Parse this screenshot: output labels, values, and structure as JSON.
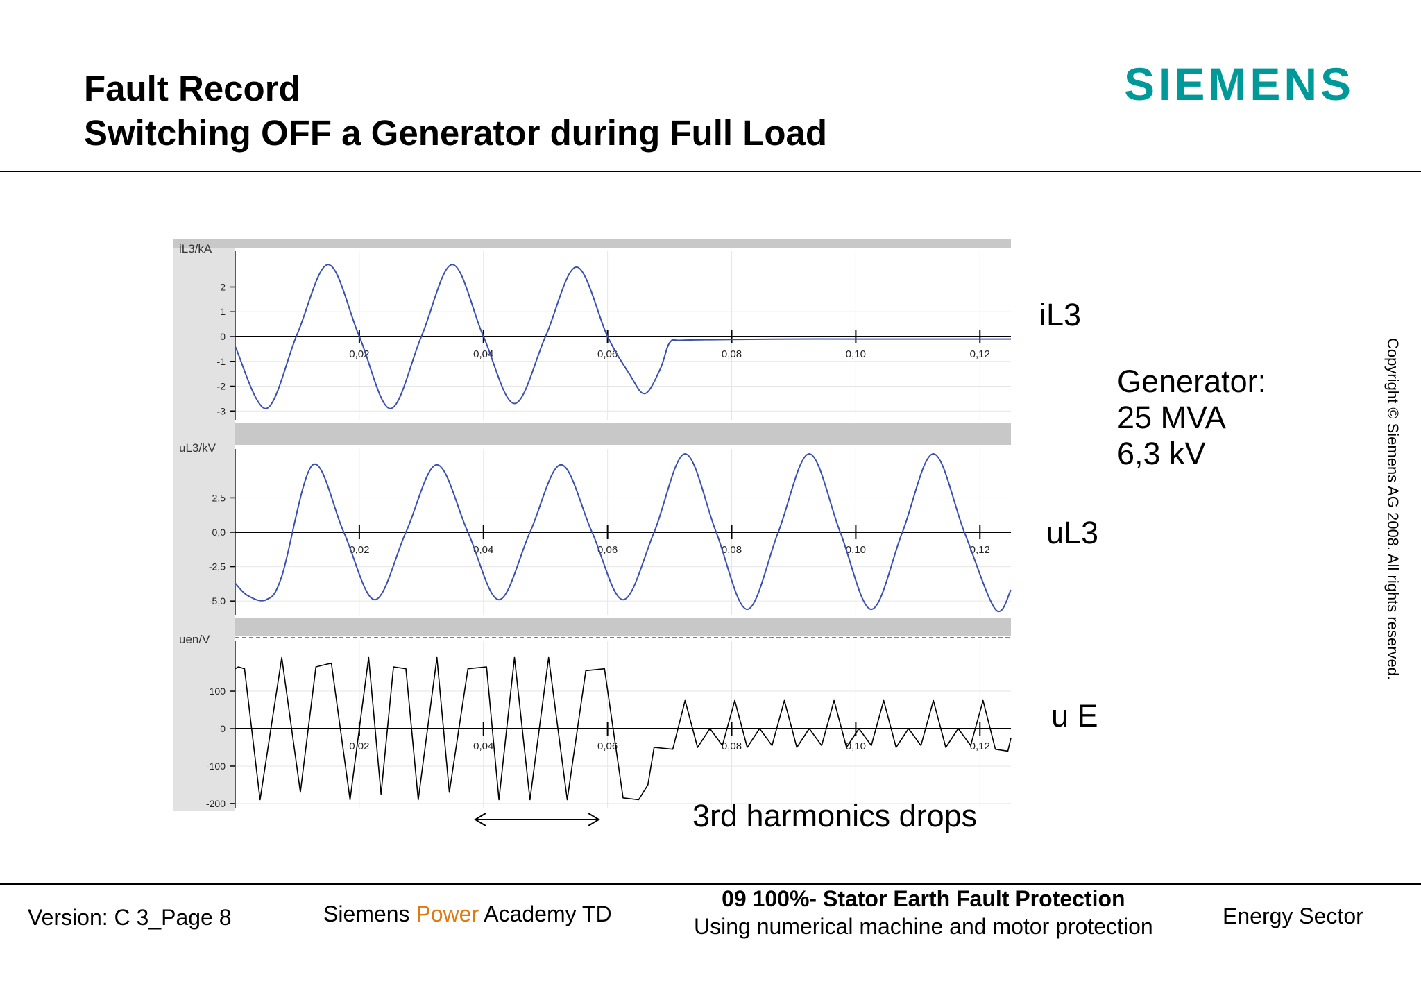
{
  "header": {
    "title_line1": "Fault Record",
    "title_line2": "Switching OFF a Generator during Full Load",
    "logo": "SIEMENS",
    "logo_color": "#009999"
  },
  "labels": {
    "il3": "iL3",
    "ul3": "uL3",
    "ue": "u E",
    "generator_line1": "Generator:",
    "generator_line2": "25 MVA",
    "generator_line3": "6,3 kV",
    "annotation": "3rd harmonics drops",
    "copyright": "Copyright © Siemens AG 2008. All rights reserved."
  },
  "footer": {
    "version": "Version: C 3_Page 8",
    "academy_pre": "Siemens ",
    "academy_power": "Power",
    "academy_post": " Academy TD",
    "power_color": "#e07a10",
    "topic_line1": "09  100%- Stator Earth Fault Protection",
    "topic_line2": "Using numerical machine and motor protection",
    "sector": "Energy Sector"
  },
  "chart_data": [
    {
      "type": "line",
      "title": "",
      "ylabel": "iL3/kA",
      "xlim": [
        0,
        0.125
      ],
      "ylim": [
        -3.3,
        3.3
      ],
      "yticks": [
        2,
        1,
        0,
        -1,
        -2,
        -3
      ],
      "ytick_labels": [
        "2",
        "1",
        "0",
        "-1",
        "-2",
        "-3"
      ],
      "xticks": [
        0.02,
        0.04,
        0.06,
        0.08,
        0.1,
        0.12
      ],
      "xtick_labels": [
        "0,02",
        "0,04",
        "0,06",
        "0,08",
        "0,10",
        "0,12"
      ],
      "series": [
        {
          "color": "#3a50b0",
          "x": [
            0,
            0.005,
            0.01,
            0.015,
            0.02,
            0.025,
            0.03,
            0.035,
            0.04,
            0.045,
            0.05,
            0.055,
            0.06,
            0.0635,
            0.066,
            0.0685,
            0.07,
            0.072,
            0.08,
            0.09,
            0.1,
            0.11,
            0.12,
            0.125
          ],
          "y": [
            -0.4,
            -2.9,
            0.1,
            2.9,
            0,
            -2.9,
            0,
            2.9,
            0,
            -2.7,
            0,
            2.8,
            0,
            -1.5,
            -2.3,
            -1.3,
            -0.25,
            -0.15,
            -0.12,
            -0.1,
            -0.1,
            -0.1,
            -0.1,
            -0.1
          ]
        }
      ]
    },
    {
      "type": "line",
      "title": "",
      "ylabel": "uL3/kV",
      "xlim": [
        0,
        0.125
      ],
      "ylim": [
        -6.0,
        6.0
      ],
      "yticks": [
        2.5,
        0,
        -2.5,
        -5.0
      ],
      "ytick_labels": [
        "2,5",
        "0,0",
        "-2,5",
        "-5,0"
      ],
      "xticks": [
        0.02,
        0.04,
        0.06,
        0.08,
        0.1,
        0.12
      ],
      "xtick_labels": [
        "0,02",
        "0,04",
        "0,06",
        "0,08",
        "0,10",
        "0,12"
      ],
      "series": [
        {
          "color": "#3a50b0",
          "x": [
            0,
            0.002,
            0.005,
            0.0075,
            0.0125,
            0.0175,
            0.0225,
            0.0275,
            0.0325,
            0.0375,
            0.0425,
            0.0475,
            0.0525,
            0.0575,
            0.0625,
            0.0675,
            0.0725,
            0.0775,
            0.0825,
            0.0875,
            0.0925,
            0.0975,
            0.1025,
            0.1075,
            0.1125,
            0.1175,
            0.1225,
            0.125
          ],
          "y": [
            -3.7,
            -4.6,
            -4.9,
            -3.2,
            4.9,
            0,
            -4.9,
            0,
            4.9,
            0,
            -4.9,
            0,
            4.9,
            0,
            -4.9,
            0,
            5.7,
            0,
            -5.6,
            0,
            5.7,
            0,
            -5.6,
            0,
            5.7,
            0,
            -5.6,
            -4.2
          ]
        }
      ]
    },
    {
      "type": "line",
      "title": "",
      "ylabel": "uen/V",
      "xlim": [
        0,
        0.125
      ],
      "ylim": [
        -215,
        215
      ],
      "yticks": [
        100,
        0,
        -100,
        -200
      ],
      "ytick_labels": [
        "100",
        "0",
        "-100",
        "-200"
      ],
      "xticks": [
        0.02,
        0.04,
        0.06,
        0.08,
        0.1,
        0.12
      ],
      "xtick_labels": [
        "0,02",
        "0,04",
        "0,06",
        "0,08",
        "0,10",
        "0,12"
      ],
      "series": [
        {
          "color": "#000000",
          "x": [
            0,
            0.0005,
            0.0015,
            0.004,
            0.0075,
            0.0105,
            0.013,
            0.0155,
            0.0185,
            0.0215,
            0.0235,
            0.0255,
            0.0275,
            0.0295,
            0.0325,
            0.0345,
            0.0375,
            0.0405,
            0.0425,
            0.045,
            0.0475,
            0.0505,
            0.0535,
            0.0565,
            0.0595,
            0.0625,
            0.065,
            0.0665,
            0.0675,
            0.0705,
            0.0725,
            0.0745,
            0.0765,
            0.0785,
            0.0805,
            0.0825,
            0.0845,
            0.0865,
            0.0885,
            0.0905,
            0.0925,
            0.0945,
            0.0965,
            0.0985,
            0.1005,
            0.1025,
            0.1045,
            0.1065,
            0.1085,
            0.1105,
            0.1125,
            0.1145,
            0.1165,
            0.1185,
            0.1205,
            0.1225,
            0.1245,
            0.125
          ],
          "y": [
            160,
            165,
            160,
            -190,
            190,
            -170,
            165,
            175,
            -190,
            190,
            -175,
            165,
            160,
            -190,
            190,
            -170,
            160,
            165,
            -190,
            190,
            -190,
            190,
            -190,
            155,
            160,
            -185,
            -190,
            -150,
            -50,
            -55,
            75,
            -50,
            0,
            -45,
            75,
            -50,
            0,
            -45,
            75,
            -50,
            0,
            -45,
            75,
            -50,
            0,
            -45,
            75,
            -50,
            0,
            -45,
            75,
            -50,
            0,
            -45,
            75,
            -55,
            -60,
            -25
          ]
        }
      ]
    }
  ]
}
